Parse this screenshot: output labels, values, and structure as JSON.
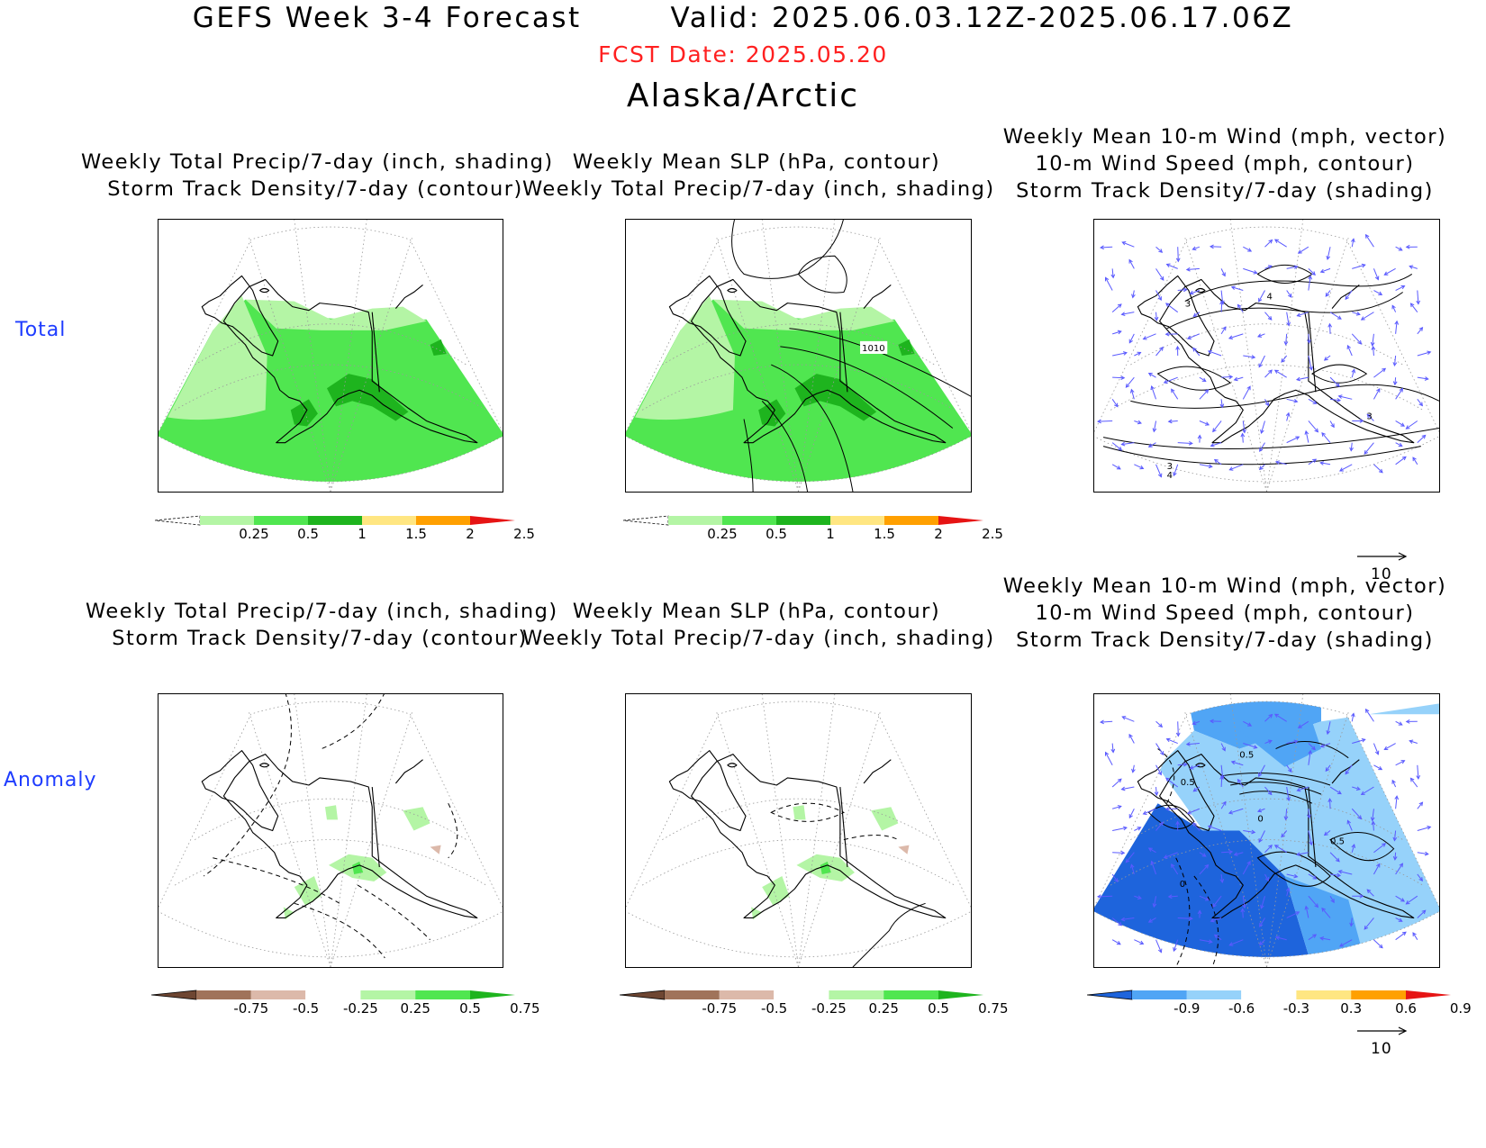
{
  "header": {
    "title": "GEFS Week 3-4 Forecast        Valid: 2025.06.03.12Z-2025.06.17.06Z",
    "fcst_date": "FCST Date: 2025.05.20",
    "region": "Alaska/Arctic"
  },
  "rows": {
    "total": "Total",
    "anomaly": "Anomaly"
  },
  "panels": {
    "p11": {
      "line1": "Weekly Total Precip/7-day (inch, shading)",
      "line2": "Storm Track Density/7-day (contour)"
    },
    "p12": {
      "line1": "Weekly Mean SLP (hPa, contour)",
      "line2": "Weekly Total Precip/7-day (inch, shading)",
      "contour_label": "1010"
    },
    "p13": {
      "line1": "Weekly Mean 10-m Wind (mph, vector)",
      "line2": "10-m Wind Speed (mph, contour)",
      "line3": "Storm Track Density/7-day (shading)",
      "labels": [
        "3",
        "4",
        "3",
        "4",
        "3"
      ]
    },
    "p21": {
      "line1": "Weekly Total Precip/7-day (inch, shading)",
      "line2": "Storm Track Density/7-day (contour)"
    },
    "p22": {
      "line1": "Weekly Mean SLP (hPa, contour)",
      "line2": "Weekly Total Precip/7-day (inch, shading)"
    },
    "p23": {
      "line1": "Weekly Mean 10-m Wind (mph, vector)",
      "line2": "10-m Wind Speed (mph, contour)",
      "line3": "Storm Track Density/7-day (shading)",
      "labels": [
        "0.5",
        "0.5",
        "0",
        "0.5",
        "0"
      ]
    }
  },
  "colorbars": {
    "precip_total": {
      "ticks": [
        "0.25",
        "0.5",
        "1",
        "1.5",
        "2",
        "2.5"
      ],
      "colors": [
        "#ffffff",
        "#b4f5a5",
        "#50e650",
        "#1eb41e",
        "#ffe682",
        "#ffa000",
        "#e61414"
      ]
    },
    "precip_anom": {
      "ticks": [
        "-0.75",
        "-0.5",
        "-0.25",
        "0.25",
        "0.5",
        "0.75"
      ],
      "colors": [
        "#6e4632",
        "#a0735a",
        "#dcb9aa",
        "#ffffff",
        "#b4f5a5",
        "#50e650",
        "#1eb41e"
      ]
    },
    "storm_anom": {
      "ticks": [
        "-0.9",
        "-0.6",
        "-0.3",
        "0.3",
        "0.6",
        "0.9"
      ],
      "colors": [
        "#1e64dc",
        "#50a5f5",
        "#96d2fa",
        "#ffffff",
        "#ffe682",
        "#ffa000",
        "#e61414"
      ]
    }
  },
  "vector_ref": {
    "label": "10"
  },
  "colors": {
    "title_red": "#ff2020",
    "row_label_blue": "#1e3cff",
    "vector_blue": "#5a5aff"
  }
}
